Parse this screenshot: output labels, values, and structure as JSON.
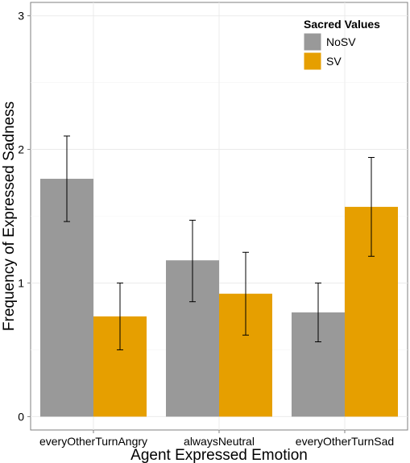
{
  "chart_data": {
    "type": "bar",
    "title": "",
    "xlabel": "Agent Expressed Emotion",
    "ylabel": "Frequency of Expressed Sadness",
    "ylim": [
      -0.1,
      3.1
    ],
    "yticks": [
      0,
      1,
      2,
      3
    ],
    "grid": true,
    "legend": {
      "title": "Sacred Values",
      "placement": "top-right"
    },
    "categories": [
      "everyOtherTurnAngry",
      "alwaysNeutral",
      "everyOtherTurnSad"
    ],
    "series": [
      {
        "name": "NoSV",
        "color": "#999999",
        "values": [
          1.78,
          1.17,
          0.78
        ],
        "error_low": [
          1.46,
          0.86,
          0.56
        ],
        "error_high": [
          2.1,
          1.47,
          1.0
        ]
      },
      {
        "name": "SV",
        "color": "#E69F00",
        "values": [
          0.75,
          0.92,
          1.57
        ],
        "error_low": [
          0.5,
          0.61,
          1.2
        ],
        "error_high": [
          1.0,
          1.23,
          1.94
        ]
      }
    ]
  }
}
